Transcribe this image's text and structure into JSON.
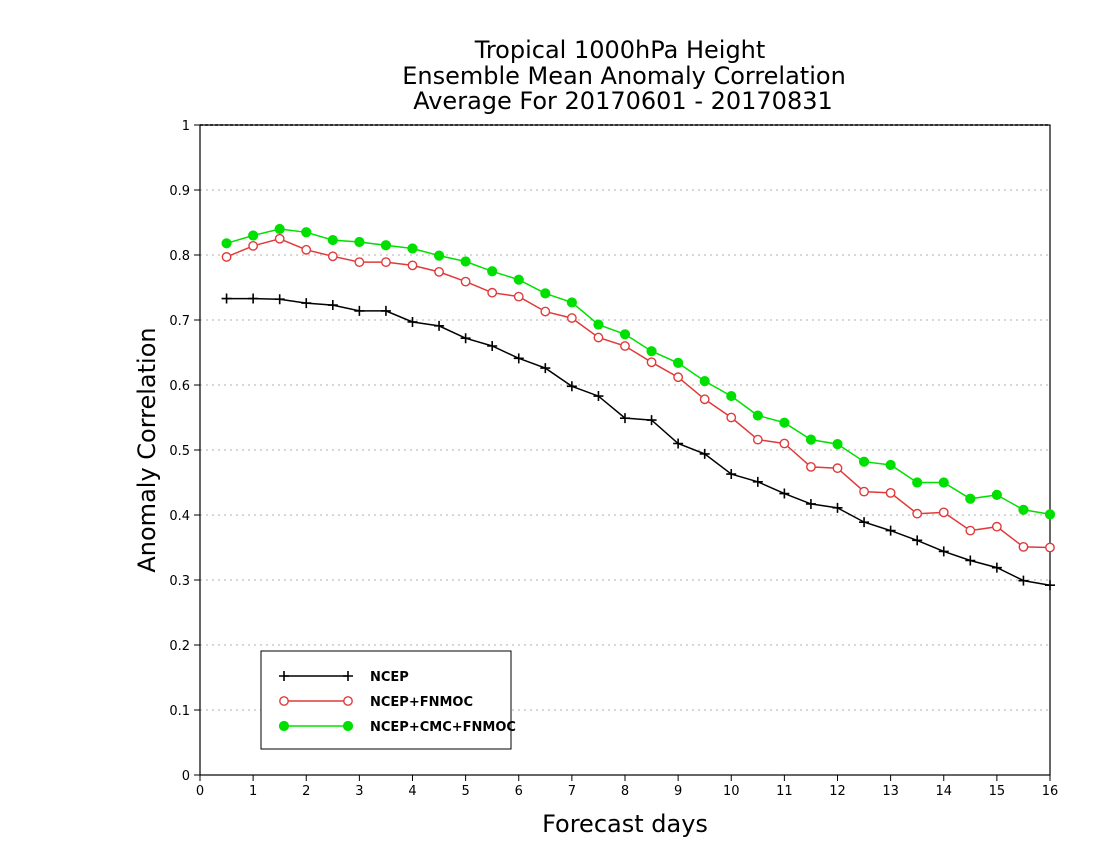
{
  "chart_data": {
    "type": "line",
    "title": [
      "Tropical 1000hPa Height",
      "Ensemble Mean Anomaly Correlation",
      "Average For 20170601 - 20170831"
    ],
    "xlabel": "Forecast days",
    "ylabel": "Anomaly Correlation",
    "xlim": [
      0,
      16
    ],
    "ylim": [
      0,
      1
    ],
    "xticks": [
      "0",
      "1",
      "2",
      "3",
      "4",
      "5",
      "6",
      "7",
      "8",
      "9",
      "10",
      "11",
      "12",
      "13",
      "14",
      "15",
      "16"
    ],
    "yticks": [
      "0",
      "0.1",
      "0.2",
      "0.3",
      "0.4",
      "0.5",
      "0.6",
      "0.7",
      "0.8",
      "0.9",
      "1"
    ],
    "grid": "horizontal dotted",
    "legend_position": "bottom-left",
    "x": [
      0.5,
      1,
      1.5,
      2,
      2.5,
      3,
      3.5,
      4,
      4.5,
      5,
      5.5,
      6,
      6.5,
      7,
      7.5,
      8,
      8.5,
      9,
      9.5,
      10,
      10.5,
      11,
      11.5,
      12,
      12.5,
      13,
      13.5,
      14,
      14.5,
      15,
      15.5,
      16
    ],
    "series": [
      {
        "name": "NCEP",
        "color": "#000000",
        "marker": "plus",
        "values": [
          0.733,
          0.733,
          0.732,
          0.726,
          0.723,
          0.714,
          0.714,
          0.697,
          0.691,
          0.672,
          0.66,
          0.641,
          0.626,
          0.598,
          0.583,
          0.549,
          0.546,
          0.51,
          0.494,
          0.463,
          0.451,
          0.433,
          0.417,
          0.411,
          0.389,
          0.376,
          0.361,
          0.344,
          0.33,
          0.319,
          0.299,
          0.292
        ]
      },
      {
        "name": "NCEP+FNMOC",
        "color": "#e03a3a",
        "marker": "open-circle",
        "values": [
          0.797,
          0.814,
          0.825,
          0.808,
          0.798,
          0.789,
          0.789,
          0.784,
          0.774,
          0.759,
          0.742,
          0.736,
          0.713,
          0.703,
          0.673,
          0.66,
          0.635,
          0.612,
          0.578,
          0.55,
          0.516,
          0.51,
          0.474,
          0.472,
          0.436,
          0.434,
          0.402,
          0.404,
          0.376,
          0.382,
          0.351,
          0.35
        ]
      },
      {
        "name": "NCEP+CMC+FNMOC",
        "color": "#00e000",
        "marker": "filled-circle",
        "values": [
          0.818,
          0.83,
          0.84,
          0.835,
          0.823,
          0.82,
          0.815,
          0.81,
          0.799,
          0.79,
          0.775,
          0.762,
          0.741,
          0.727,
          0.693,
          0.678,
          0.652,
          0.634,
          0.606,
          0.583,
          0.553,
          0.542,
          0.516,
          0.509,
          0.482,
          0.477,
          0.45,
          0.45,
          0.425,
          0.431,
          0.408,
          0.401
        ]
      }
    ]
  }
}
